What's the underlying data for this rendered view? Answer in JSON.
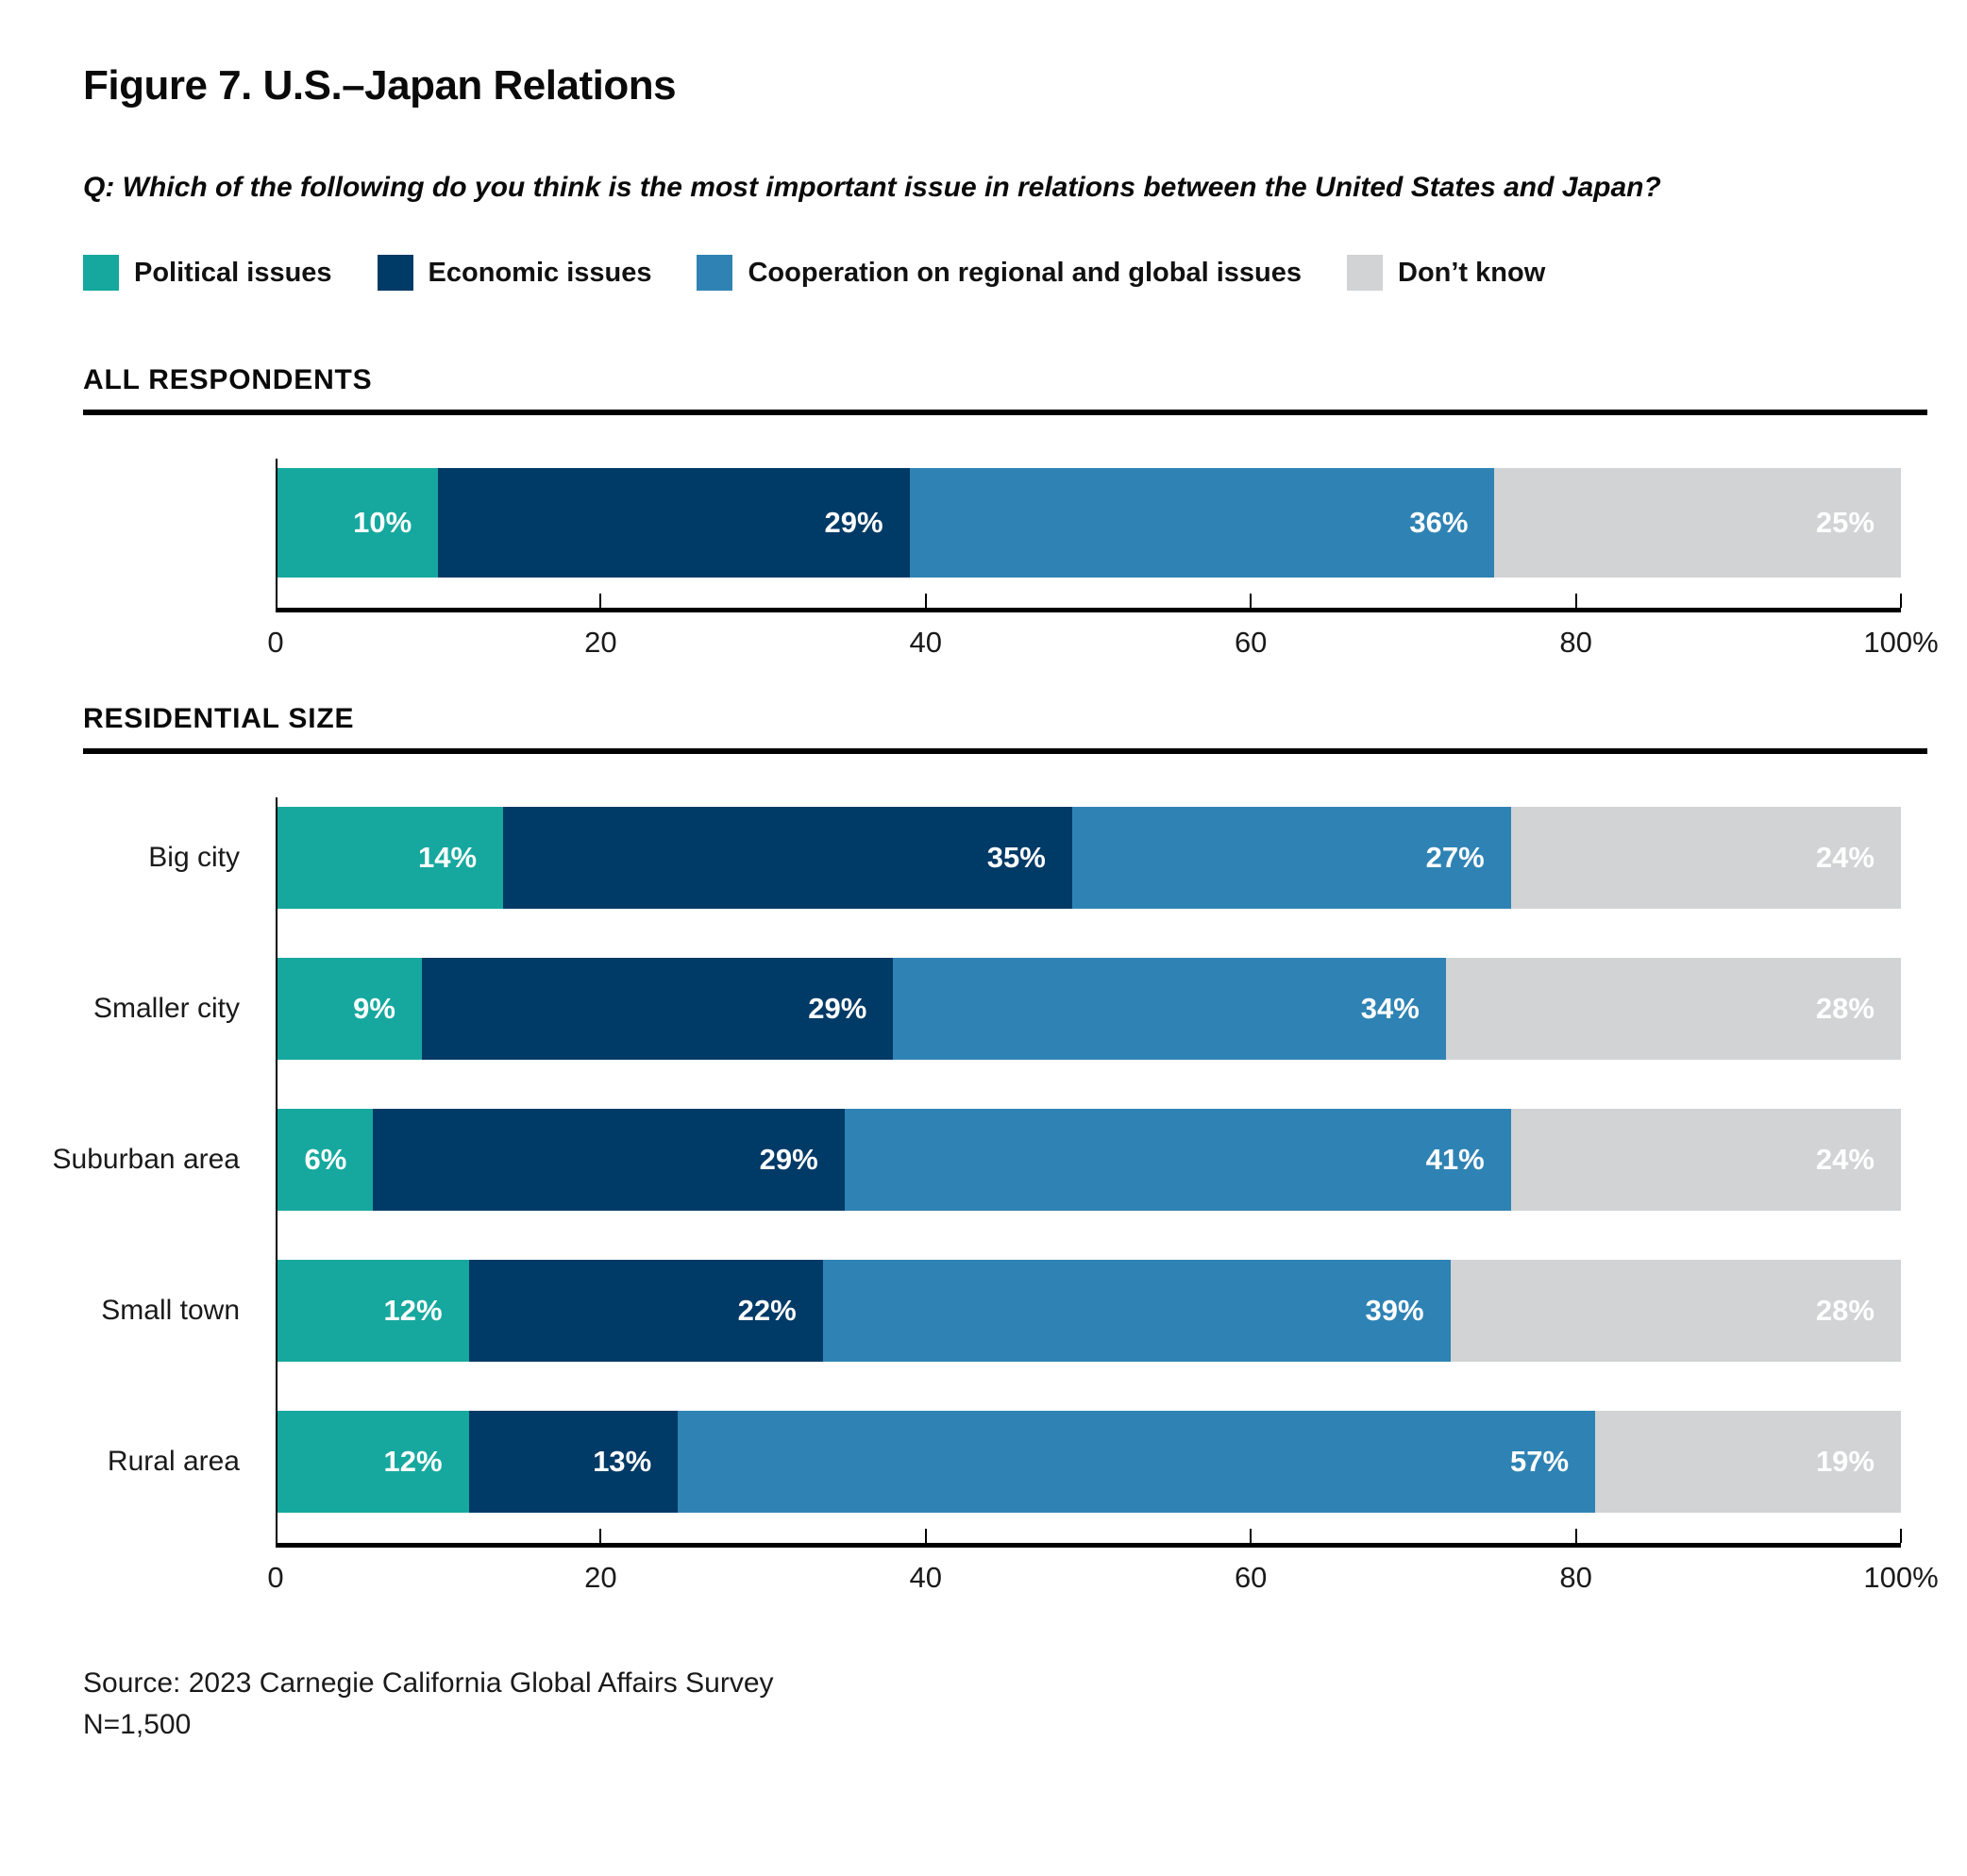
{
  "figure": {
    "title": "Figure 7. U.S.–Japan Relations",
    "question": "Q: Which of the following do you think is the most important issue in relations between the United States and Japan?",
    "source": "Source: 2023 Carnegie California Global Affairs Survey",
    "n": "N=1,500"
  },
  "colors": {
    "political_issues": "#16A89E",
    "economic_issues": "#003A66",
    "cooperation": "#2F83B4",
    "dont_know": "#D1D3D4",
    "axis": "#000000",
    "value_label": "#FFFFFF"
  },
  "legend": [
    {
      "label": "Political issues",
      "color": "#16A89E"
    },
    {
      "label": "Economic issues",
      "color": "#003A66"
    },
    {
      "label": "Cooperation on regional and global issues",
      "color": "#2F83B4"
    },
    {
      "label": "Don’t know",
      "color": "#D1D3D4"
    }
  ],
  "chart_data": [
    {
      "type": "bar",
      "orientation": "horizontal",
      "stacked": true,
      "section_title": "ALL RESPONDENTS",
      "categories": [
        "All respondents"
      ],
      "show_category_labels": false,
      "series": [
        {
          "name": "Political issues",
          "color": "#16A89E",
          "values": [
            10
          ]
        },
        {
          "name": "Economic issues",
          "color": "#003A66",
          "values": [
            29
          ]
        },
        {
          "name": "Cooperation on regional and global issues",
          "color": "#2F83B4",
          "values": [
            36
          ]
        },
        {
          "name": "Don’t know",
          "color": "#D1D3D4",
          "values": [
            25
          ]
        }
      ],
      "value_label_format": "percent",
      "xlim": [
        0,
        100
      ],
      "x_tick_positions": [
        0,
        20,
        40,
        60,
        80,
        100
      ],
      "x_tick_labels": [
        "0",
        "20",
        "40",
        "60",
        "80",
        "100%"
      ],
      "grid": false,
      "legend_position": "top"
    },
    {
      "type": "bar",
      "orientation": "horizontal",
      "stacked": true,
      "section_title": "RESIDENTIAL SIZE",
      "categories": [
        "Big city",
        "Smaller city",
        "Suburban area",
        "Small town",
        "Rural area"
      ],
      "show_category_labels": true,
      "series": [
        {
          "name": "Political issues",
          "color": "#16A89E",
          "values": [
            14,
            9,
            6,
            12,
            12
          ]
        },
        {
          "name": "Economic issues",
          "color": "#003A66",
          "values": [
            35,
            29,
            29,
            22,
            13
          ]
        },
        {
          "name": "Cooperation on regional and global issues",
          "color": "#2F83B4",
          "values": [
            27,
            34,
            41,
            39,
            57
          ]
        },
        {
          "name": "Don’t know",
          "color": "#D1D3D4",
          "values": [
            24,
            28,
            24,
            28,
            19
          ]
        }
      ],
      "value_label_format": "percent",
      "xlim": [
        0,
        100
      ],
      "x_tick_positions": [
        0,
        20,
        40,
        60,
        80,
        100
      ],
      "x_tick_labels": [
        "0",
        "20",
        "40",
        "60",
        "80",
        "100%"
      ],
      "grid": false,
      "legend_position": "top"
    }
  ]
}
